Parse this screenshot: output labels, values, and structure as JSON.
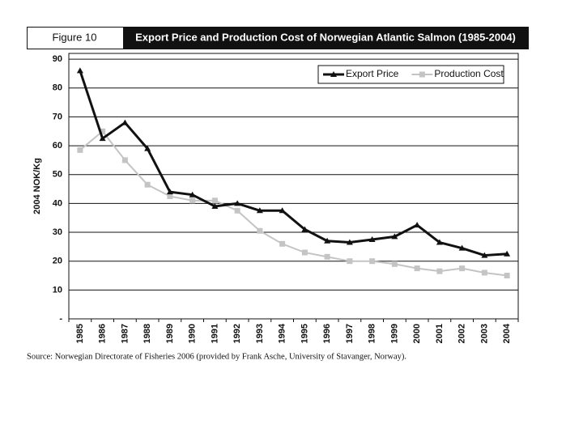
{
  "chart_data": {
    "type": "line",
    "figure": "Figure 10",
    "title": "Export Price and Production Cost of Norwegian Atlantic Salmon (1985-2004)",
    "y_label": "2004 NOK/Kg",
    "source": "Source: Norwegian Directorate of Fisheries 2006 (provided by Frank Asche, University of Stavanger, Norway).",
    "categories": [
      "1985",
      "1986",
      "1987",
      "1988",
      "1989",
      "1990",
      "1991",
      "1992",
      "1993",
      "1994",
      "1995",
      "1996",
      "1997",
      "1998",
      "1999",
      "2000",
      "2001",
      "2002",
      "2003",
      "2004"
    ],
    "series": [
      {
        "name": "Export Price",
        "color": "#111111",
        "marker": "triangle",
        "values": [
          86,
          62.5,
          68,
          59,
          44,
          43,
          39,
          40,
          37.5,
          37.5,
          31,
          27,
          26.5,
          27.5,
          28.5,
          32.5,
          26.5,
          24.5,
          22,
          22.5
        ]
      },
      {
        "name": "Production Cost",
        "color": "#c4c4c4",
        "marker": "square",
        "values": [
          58.5,
          65,
          55,
          46.5,
          42.5,
          41,
          41,
          37.5,
          30.5,
          26,
          23,
          21.5,
          20,
          20,
          19,
          17.5,
          16.5,
          17.5,
          16,
          15
        ]
      }
    ],
    "ylim": [
      0,
      92
    ],
    "yticks": [
      {
        "value": 0,
        "label": "-"
      },
      10,
      20,
      30,
      40,
      50,
      60,
      70,
      80,
      90
    ],
    "grid": true,
    "legend": "top-right"
  }
}
